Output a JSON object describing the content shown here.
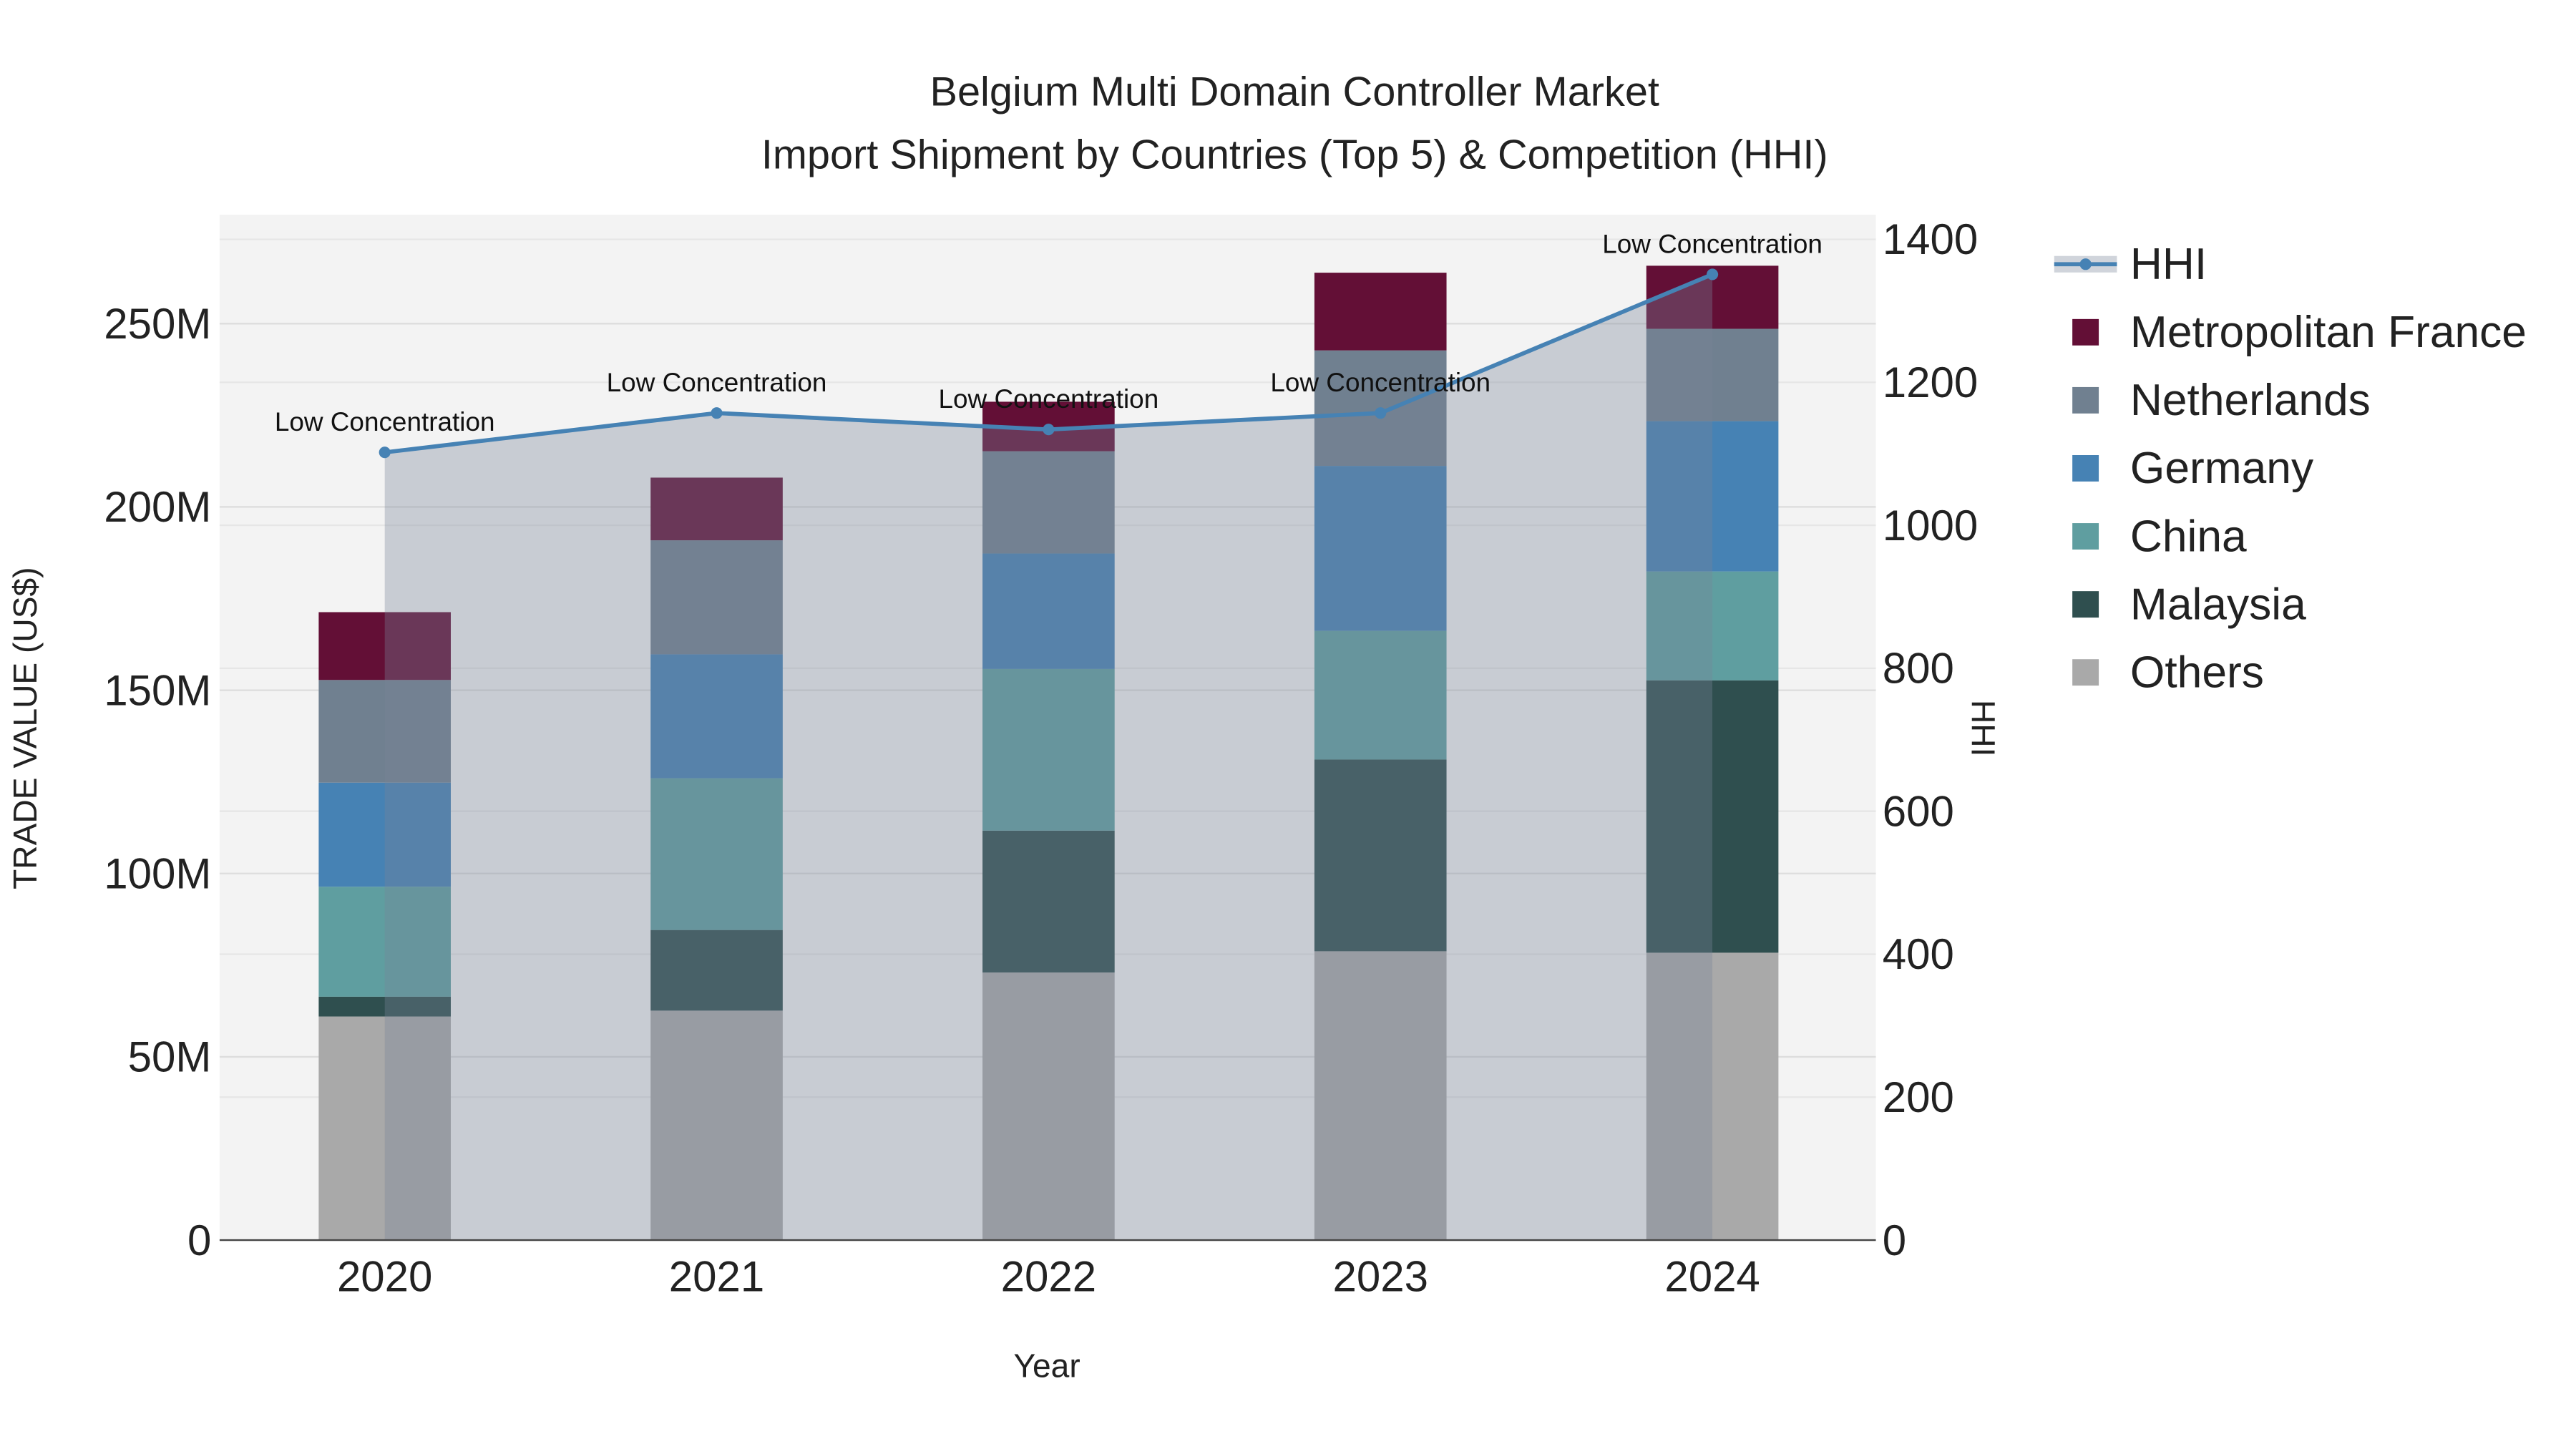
{
  "chart_data": {
    "type": "bar",
    "stacked": true,
    "title": "Belgium Multi Domain Controller Market",
    "subtitle": "Import Shipment by Countries (Top 5) & Competition (HHI)",
    "xlabel": "Year",
    "ylabel": "TRADE VALUE (US$)",
    "y2label": "HHI",
    "categories": [
      "2020",
      "2021",
      "2022",
      "2023",
      "2024"
    ],
    "ylim": [
      0,
      280
    ],
    "y_ticks": [
      0,
      50,
      100,
      150,
      200,
      250
    ],
    "y_tick_labels": [
      "0",
      "50M",
      "100M",
      "150M",
      "200M",
      "250M"
    ],
    "y2lim": [
      0,
      1430
    ],
    "y2_ticks": [
      0,
      200,
      400,
      600,
      800,
      1000,
      1200,
      1400
    ],
    "y2_tick_labels": [
      "0",
      "200",
      "400",
      "600",
      "800",
      "1000",
      "1200",
      "1400"
    ],
    "units": "million US$",
    "series": [
      {
        "name": "Others",
        "color": "#a9a9a9",
        "values": [
          61,
          62.6,
          73,
          78.8,
          78.4
        ]
      },
      {
        "name": "Malaysia",
        "color": "#2f4f4f",
        "values": [
          5.4,
          22,
          38.7,
          52.3,
          74.3
        ]
      },
      {
        "name": "China",
        "color": "#5f9ea0",
        "values": [
          30,
          41.4,
          44.1,
          35.1,
          29.7
        ]
      },
      {
        "name": "Germany",
        "color": "#4682b4",
        "values": [
          28.4,
          33.8,
          31.5,
          45,
          41
        ]
      },
      {
        "name": "Netherlands",
        "color": "#708090",
        "values": [
          28,
          31.1,
          27.9,
          31.5,
          25.2
        ]
      },
      {
        "name": "Metropolitan France",
        "color": "#630f36",
        "values": [
          18.5,
          17.1,
          13.5,
          21.2,
          17.2
        ]
      }
    ],
    "line": {
      "name": "HHI",
      "color": "#4682b4",
      "values": [
        1102,
        1157,
        1134,
        1157,
        1351
      ],
      "annotations": [
        "Low Concentration",
        "Low Concentration",
        "Low Concentration",
        "Low Concentration",
        "Low Concentration"
      ]
    },
    "legend_order": [
      "HHI",
      "Metropolitan France",
      "Netherlands",
      "Germany",
      "China",
      "Malaysia",
      "Others"
    ],
    "legend_position": "right",
    "grid": true
  }
}
